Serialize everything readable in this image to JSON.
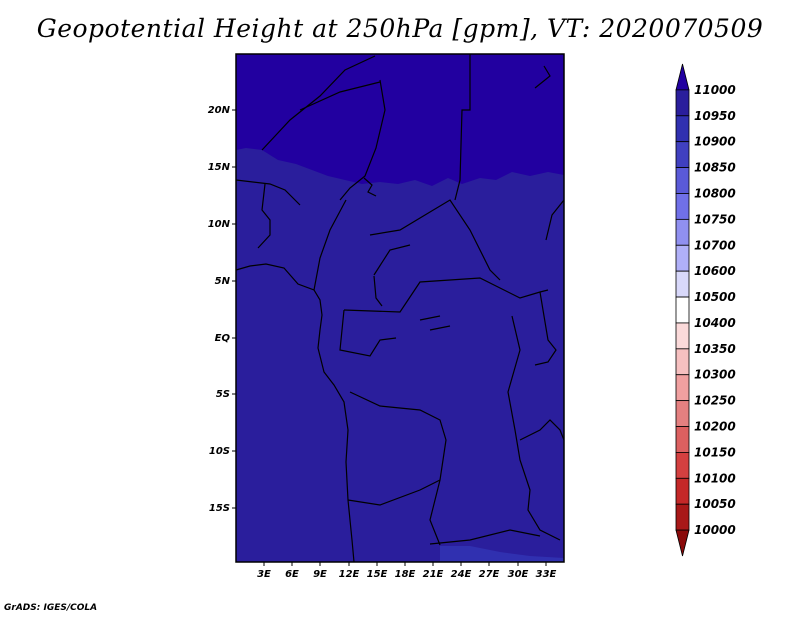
{
  "title": "Geopotential Height at 250hPa [gpm], VT: 2020070509",
  "credit": "GrADS: IGES/COLA",
  "map": {
    "lat_labels": [
      "20N",
      "15N",
      "10N",
      "5N",
      "EQ",
      "5S",
      "10S",
      "15S"
    ],
    "lon_labels": [
      "3E",
      "6E",
      "9E",
      "12E",
      "15E",
      "18E",
      "21E",
      "24E",
      "27E",
      "30E",
      "33E"
    ]
  },
  "colorbar": {
    "levels": [
      "11000",
      "10950",
      "10900",
      "10850",
      "10800",
      "10750",
      "10700",
      "10600",
      "10500",
      "10400",
      "10350",
      "10300",
      "10250",
      "10200",
      "10150",
      "10100",
      "10050",
      "10000"
    ],
    "colors": [
      "#2200a0",
      "#2a1e9c",
      "#3030b0",
      "#4040c0",
      "#5a5ad8",
      "#7070e8",
      "#9090f0",
      "#b0b0f8",
      "#d8d8fa",
      "#ffffff",
      "#fbdada",
      "#f6c0c0",
      "#f0a0a0",
      "#e48080",
      "#dc6060",
      "#d44040",
      "#c42828",
      "#a81818",
      "#8a0a0a"
    ]
  },
  "field_colors": {
    "north": "#2200a0",
    "main": "#2a1e9c",
    "south_strip": "#3030b0"
  }
}
